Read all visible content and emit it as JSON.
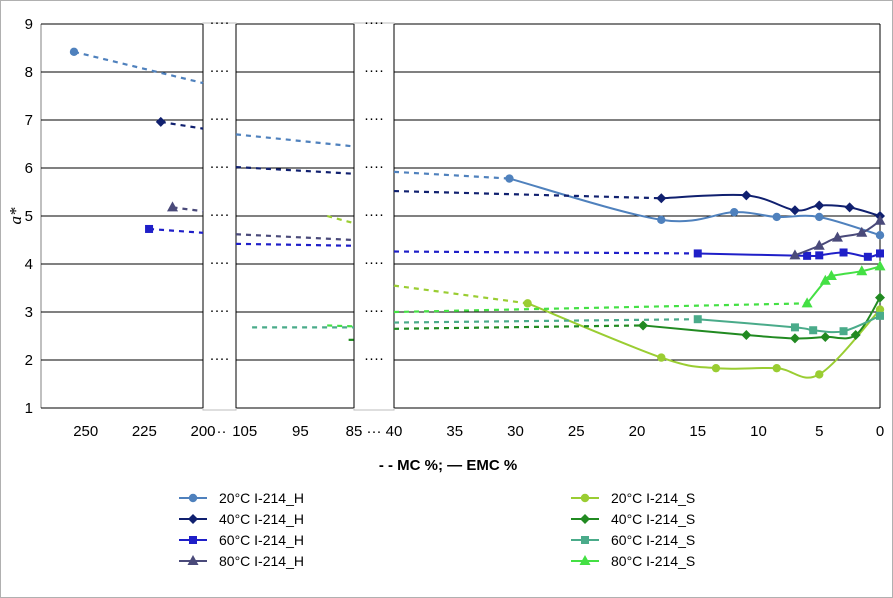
{
  "chart_data": {
    "type": "line",
    "ylabel": "a*",
    "ylim": [
      1,
      9
    ],
    "yticks": [
      "1",
      "2",
      "3",
      "4",
      "5",
      "6",
      "7",
      "8",
      "9"
    ],
    "x_segments": [
      {
        "range": [
          255,
          200
        ],
        "ticks": [
          "250",
          "225",
          "200"
        ]
      },
      {
        "range": [
          107,
          85
        ],
        "ticks": [
          "105",
          "95",
          "85"
        ]
      },
      {
        "range": [
          40,
          0
        ],
        "ticks": [
          "40",
          "35",
          "30",
          "25",
          "20",
          "15",
          "10",
          "5",
          "0"
        ]
      }
    ],
    "break_label": "····",
    "caption": "- - MC %;  — EMC %",
    "series": [
      {
        "name": "20°C I-214_H",
        "color": "#4f81bd",
        "marker": "circle",
        "points": [
          [
            255,
            8.42
          ],
          [
            30.5,
            5.78
          ],
          [
            18,
            4.92
          ],
          [
            12,
            5.08
          ],
          [
            8.5,
            4.98
          ],
          [
            5,
            4.98
          ],
          [
            0,
            4.6
          ]
        ],
        "mc": [
          [
            255,
            8.42
          ],
          [
            200,
            7.77
          ]
        ],
        "mc2": [
          [
            107,
            6.7
          ],
          [
            85,
            6.45
          ]
        ],
        "mc3": [
          [
            40,
            5.92
          ],
          [
            30.5,
            5.78
          ]
        ]
      },
      {
        "name": "40°C I-214_H",
        "color": "#10206f",
        "marker": "diamond",
        "points": [
          [
            218,
            6.96
          ],
          [
            18,
            5.37
          ],
          [
            11,
            5.43
          ],
          [
            7,
            5.12
          ],
          [
            5,
            5.22
          ],
          [
            2.5,
            5.18
          ],
          [
            0,
            5.0
          ]
        ],
        "mc": [
          [
            218,
            6.96
          ],
          [
            200,
            6.82
          ]
        ],
        "mc2": [
          [
            107,
            6.02
          ],
          [
            85,
            5.88
          ]
        ],
        "mc3": [
          [
            40,
            5.52
          ],
          [
            18,
            5.37
          ]
        ]
      },
      {
        "name": "60°C I-214_H",
        "color": "#1f1fc8",
        "marker": "square",
        "points": [
          [
            223,
            4.73
          ],
          [
            15,
            4.22
          ],
          [
            6,
            4.17
          ],
          [
            5,
            4.18
          ],
          [
            3,
            4.24
          ],
          [
            1,
            4.15
          ],
          [
            0,
            4.22
          ]
        ],
        "mc": [
          [
            223,
            4.73
          ],
          [
            200,
            4.65
          ]
        ],
        "mc2": [
          [
            107,
            4.42
          ],
          [
            85,
            4.38
          ]
        ],
        "mc3": [
          [
            40,
            4.26
          ],
          [
            15,
            4.22
          ]
        ]
      },
      {
        "name": "80°C I-214_H",
        "color": "#4a4a7a",
        "marker": "triangle",
        "points": [
          [
            213,
            5.18
          ],
          [
            7,
            4.18
          ],
          [
            5,
            4.38
          ],
          [
            3.5,
            4.55
          ],
          [
            1.5,
            4.65
          ],
          [
            0,
            4.9
          ]
        ],
        "mc": [
          [
            213,
            5.18
          ],
          [
            200,
            5.1
          ]
        ],
        "mc2": [
          [
            107,
            4.62
          ],
          [
            85,
            4.5
          ]
        ],
        "mc3": []
      },
      {
        "name": "20°C I-214_S",
        "color": "#9acd32",
        "marker": "circle",
        "points": [
          [
            29,
            3.18
          ],
          [
            18,
            2.05
          ],
          [
            13.5,
            1.83
          ],
          [
            8.5,
            1.83
          ],
          [
            5,
            1.7
          ],
          [
            0,
            3.05
          ]
        ],
        "mc": [],
        "mc2": [
          [
            90,
            5.0
          ],
          [
            85,
            4.85
          ]
        ],
        "mc3": [
          [
            40,
            3.55
          ],
          [
            29,
            3.18
          ]
        ]
      },
      {
        "name": "40°C I-214_S",
        "color": "#218a21",
        "marker": "diamond",
        "points": [
          [
            19.5,
            2.72
          ],
          [
            11,
            2.52
          ],
          [
            7,
            2.45
          ],
          [
            4.5,
            2.48
          ],
          [
            2,
            2.52
          ],
          [
            0,
            3.3
          ]
        ],
        "mc": [],
        "mc2": [
          [
            86,
            2.42
          ],
          [
            85,
            2.42
          ]
        ],
        "mc3": [
          [
            40,
            2.65
          ],
          [
            19.5,
            2.72
          ]
        ]
      },
      {
        "name": "60°C I-214_S",
        "color": "#4aab8a",
        "marker": "square",
        "points": [
          [
            15,
            2.85
          ],
          [
            7,
            2.68
          ],
          [
            5.5,
            2.62
          ],
          [
            3,
            2.6
          ],
          [
            0,
            2.92
          ]
        ],
        "mc": [],
        "mc2": [
          [
            104,
            2.68
          ],
          [
            85,
            2.68
          ]
        ],
        "mc3": [
          [
            40,
            2.78
          ],
          [
            15,
            2.85
          ]
        ]
      },
      {
        "name": "80°C I-214_S",
        "color": "#44e044",
        "marker": "triangle",
        "points": [
          [
            6,
            3.18
          ],
          [
            4.5,
            3.65
          ],
          [
            4,
            3.75
          ],
          [
            1.5,
            3.85
          ],
          [
            0,
            3.95
          ]
        ],
        "mc": [],
        "mc2": [
          [
            90,
            2.72
          ],
          [
            85,
            2.7
          ]
        ],
        "mc3": [
          [
            40,
            3.0
          ],
          [
            6,
            3.18
          ]
        ]
      }
    ],
    "legend_columns": 2
  }
}
